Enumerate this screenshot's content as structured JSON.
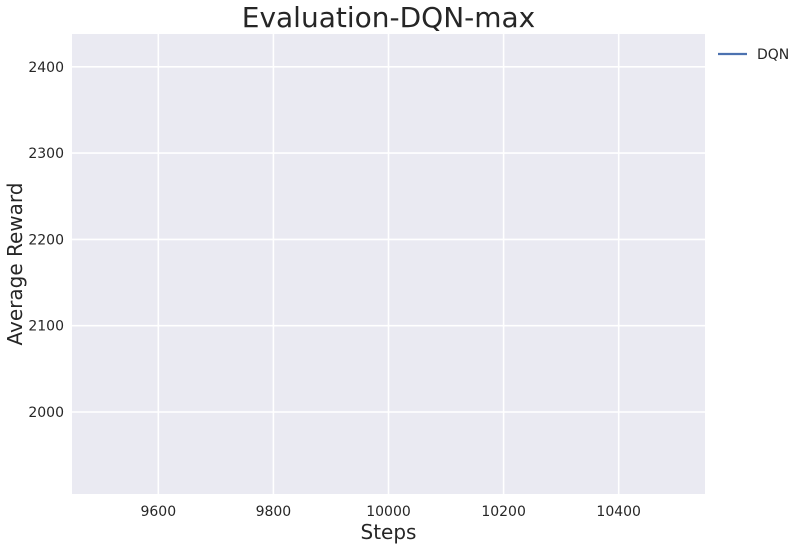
{
  "chart_data": {
    "type": "line",
    "title": "Evaluation-DQN-max",
    "xlabel": "Steps",
    "ylabel": "Average Reward",
    "xlim": [
      9450,
      10550
    ],
    "ylim": [
      1905,
      2438
    ],
    "x_ticks": [
      9600,
      9800,
      10000,
      10200,
      10400
    ],
    "y_ticks": [
      2000,
      2100,
      2200,
      2300,
      2400
    ],
    "grid": true,
    "legend_position": "outside-top-right",
    "colors": {
      "plot_background": "#EAEAF2",
      "grid": "#FFFFFF",
      "text": "#262626"
    },
    "series": [
      {
        "name": "DQN",
        "color": "#4C72B0",
        "x": [],
        "y": []
      }
    ]
  }
}
